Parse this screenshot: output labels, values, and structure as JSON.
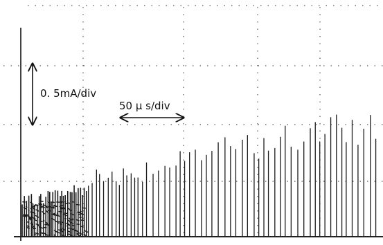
{
  "annotations": {
    "vertical_scale": "0. 5mA/div",
    "horizontal_scale": "50 μ s/div"
  }
}
